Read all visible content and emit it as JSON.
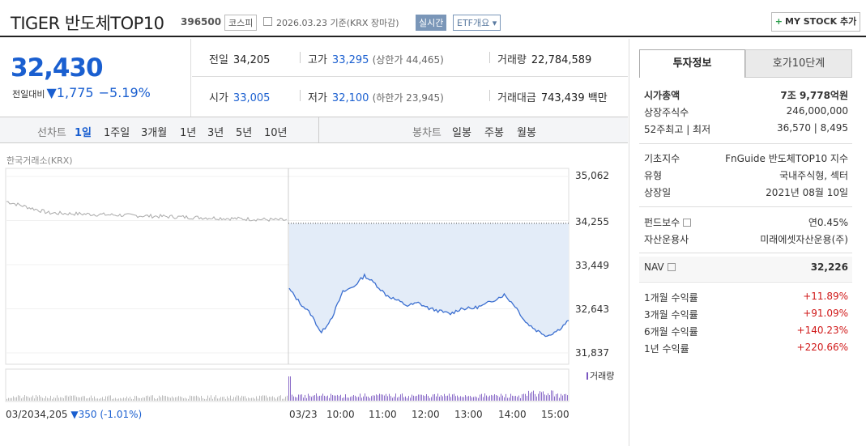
{
  "header": {
    "name": "TIGER 반도체TOP10",
    "code": "396500",
    "market": "코스피",
    "date_text": "2026.03.23 기준(KRX 장마감)",
    "realtime": "실시간",
    "etf_info": "ETF개요",
    "mystock_plus": "+",
    "mystock_label": "MY STOCK 추가"
  },
  "price": {
    "current": "32,430",
    "change_label": "전일대비",
    "change_arrow": "▼",
    "change_value": "1,775",
    "change_pct": "−5.19%"
  },
  "stats": {
    "prev_label": "전일",
    "prev": "34,205",
    "high_label": "고가",
    "high": "33,295",
    "upper_limit": "(상한가 44,465)",
    "volume_label": "거래량",
    "volume": "22,784,589",
    "open_label": "시가",
    "open": "33,005",
    "low_label": "저가",
    "low": "32,100",
    "lower_limit": "(하한가 23,945)",
    "amount_label": "거래대금",
    "amount": "743,439",
    "amount_unit": "백만"
  },
  "tabs": {
    "line_chart": "선차트",
    "periods": [
      "1일",
      "1주일",
      "3개월",
      "1년",
      "3년",
      "5년",
      "10년"
    ],
    "candle_chart": "봉차트",
    "candle_periods": [
      "일봉",
      "주봉",
      "월봉"
    ]
  },
  "chart": {
    "source": "한국거래소(KRX)",
    "volume_label": "거래량",
    "prev_day_text": "03/2034,205",
    "prev_day_change": "▼350 (-1.01%)",
    "x_labels": [
      "03/23",
      "10:00",
      "11:00",
      "12:00",
      "13:00",
      "14:00",
      "15:00"
    ]
  },
  "chart_data": {
    "type": "line",
    "xlabel": "",
    "ylabel": "",
    "ylim": [
      31837,
      35062
    ],
    "y_ticks": [
      "35,062",
      "34,255",
      "33,449",
      "32,643",
      "31,837"
    ],
    "reference_line": 34205,
    "series": [
      {
        "x": [
          "prev-day",
          "09:00",
          "09:15",
          "09:30",
          "09:45",
          "10:00",
          "10:15",
          "10:30",
          "10:45",
          "11:00",
          "11:15",
          "11:30",
          "11:45",
          "12:00",
          "12:15",
          "12:30",
          "12:45",
          "13:00",
          "13:15",
          "13:30",
          "13:45",
          "14:00",
          "14:15",
          "14:30",
          "14:45",
          "15:00",
          "15:15",
          "15:30"
        ],
        "values": [
          34205,
          33005,
          32750,
          32550,
          32200,
          32500,
          32950,
          33050,
          33250,
          33100,
          32900,
          32800,
          32700,
          32750,
          32650,
          32600,
          32550,
          32650,
          32650,
          32700,
          32800,
          32900,
          32700,
          32400,
          32250,
          32150,
          32250,
          32430
        ]
      }
    ],
    "grid": true,
    "legend": "none"
  },
  "right": {
    "tab_active": "투자정보",
    "tab_other": "호가10단계",
    "group1": [
      {
        "k": "시가총액",
        "v": "7조 9,778억원"
      },
      {
        "k": "상장주식수",
        "v": "246,000,000"
      },
      {
        "k": "52주최고 | 최저",
        "v": "36,570 | 8,495"
      }
    ],
    "group2": [
      {
        "k": "기초지수",
        "v": "FnGuide 반도체TOP10 지수"
      },
      {
        "k": "유형",
        "v": "국내주식형, 섹터"
      },
      {
        "k": "상장일",
        "v": "2021년 08월 10일"
      }
    ],
    "group3": [
      {
        "k": "펀드보수",
        "v": "연0.45%"
      },
      {
        "k": "자산운용사",
        "v": "미래에셋자산운용(주)"
      }
    ],
    "nav": {
      "k": "NAV",
      "v": "32,226"
    },
    "returns": [
      {
        "k": "1개월 수익률",
        "v": "+11.89%"
      },
      {
        "k": "3개월 수익률",
        "v": "+91.09%"
      },
      {
        "k": "6개월 수익률",
        "v": "+140.23%"
      },
      {
        "k": "1년 수익률",
        "v": "+220.66%"
      }
    ]
  }
}
